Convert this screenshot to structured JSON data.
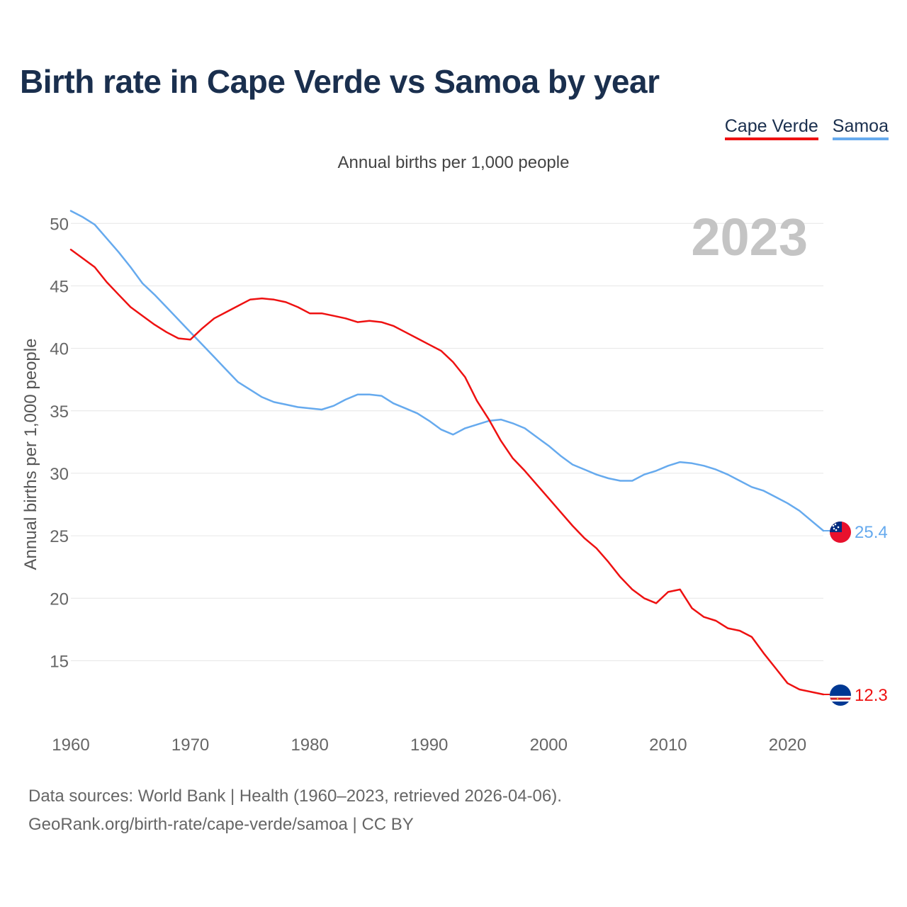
{
  "title": "Birth rate in Cape Verde vs Samoa by year",
  "subtitle": "Annual births per 1,000 people",
  "footer": {
    "line1": "Data sources: World Bank | Health (1960–2023, retrieved 2026-04-06).",
    "line2": "GeoRank.org/birth-rate/cape-verde/samoa | CC BY"
  },
  "colors": {
    "cape_verde": "#ee1111",
    "samoa": "#66aaee",
    "grid": "#e6e6e6",
    "year_watermark": "#c4c4c4"
  },
  "chart_data": {
    "type": "line",
    "title": "Birth rate in Cape Verde vs Samoa by year",
    "ylabel": "Annual births per 1,000 people",
    "xlabel": "",
    "year_watermark": "2023",
    "xlim": [
      1960,
      2023
    ],
    "ylim": [
      10.6,
      52
    ],
    "y_ticks": [
      15,
      20,
      25,
      30,
      35,
      40,
      45,
      50
    ],
    "x_ticks": [
      1960,
      1970,
      1980,
      1990,
      2000,
      2010,
      2020
    ],
    "grid": "horizontal",
    "legend": "top-right",
    "x": [
      1960,
      1961,
      1962,
      1963,
      1964,
      1965,
      1966,
      1967,
      1968,
      1969,
      1970,
      1971,
      1972,
      1973,
      1974,
      1975,
      1976,
      1977,
      1978,
      1979,
      1980,
      1981,
      1982,
      1983,
      1984,
      1985,
      1986,
      1987,
      1988,
      1989,
      1990,
      1991,
      1992,
      1993,
      1994,
      1995,
      1996,
      1997,
      1998,
      1999,
      2000,
      2001,
      2002,
      2003,
      2004,
      2005,
      2006,
      2007,
      2008,
      2009,
      2010,
      2011,
      2012,
      2013,
      2014,
      2015,
      2016,
      2017,
      2018,
      2019,
      2020,
      2021,
      2022,
      2023
    ],
    "series": [
      {
        "name": "Cape Verde",
        "end_label": "12.3",
        "flag": "cape-verde",
        "values": [
          47.9,
          47.2,
          46.5,
          45.3,
          44.3,
          43.3,
          42.6,
          41.9,
          41.3,
          40.8,
          40.7,
          41.6,
          42.4,
          42.9,
          43.4,
          43.9,
          44.0,
          43.9,
          43.7,
          43.3,
          42.8,
          42.8,
          42.6,
          42.4,
          42.1,
          42.2,
          42.1,
          41.8,
          41.3,
          40.8,
          40.3,
          39.8,
          38.9,
          37.7,
          35.8,
          34.3,
          32.6,
          31.2,
          30.2,
          29.1,
          28.0,
          26.9,
          25.8,
          24.8,
          24.0,
          22.9,
          21.7,
          20.7,
          20.0,
          19.6,
          20.5,
          20.7,
          19.2,
          18.5,
          18.2,
          17.6,
          17.4,
          16.9,
          15.6,
          14.4,
          13.2,
          12.7,
          12.5,
          12.3
        ]
      },
      {
        "name": "Samoa",
        "end_label": "25.4",
        "flag": "samoa",
        "values": [
          51.0,
          50.5,
          49.9,
          48.8,
          47.7,
          46.5,
          45.2,
          44.3,
          43.3,
          42.3,
          41.3,
          40.3,
          39.3,
          38.3,
          37.3,
          36.7,
          36.1,
          35.7,
          35.5,
          35.3,
          35.2,
          35.1,
          35.4,
          35.9,
          36.3,
          36.3,
          36.2,
          35.6,
          35.2,
          34.8,
          34.2,
          33.5,
          33.1,
          33.6,
          33.9,
          34.2,
          34.3,
          34.0,
          33.6,
          32.9,
          32.2,
          31.4,
          30.7,
          30.3,
          29.9,
          29.6,
          29.4,
          29.4,
          29.9,
          30.2,
          30.6,
          30.9,
          30.8,
          30.6,
          30.3,
          29.9,
          29.4,
          28.9,
          28.6,
          28.1,
          27.6,
          27.0,
          26.2,
          25.4
        ]
      }
    ]
  }
}
